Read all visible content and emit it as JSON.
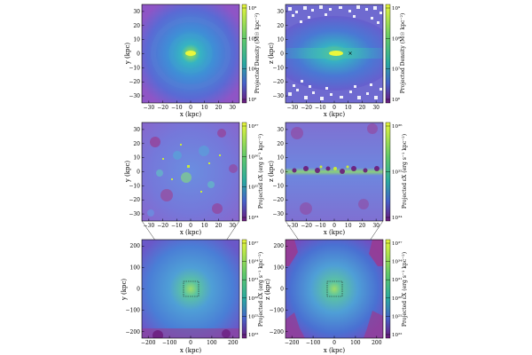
{
  "colors": {
    "dm_core": "#d9f23a",
    "dm_mid": "#3ab0c8",
    "dm_outer": "#5870d6",
    "dm_edge": "#a05cc8",
    "gas_bg": "#7a74da",
    "gas_hot": "#9fd05a",
    "gas_dark": "#9a3a90",
    "bg_outer": "#8a4bbe",
    "halo_mid": "#4f9fd6",
    "halo_core": "#6acb94",
    "cbar_top": "#e6f53a",
    "cbar_mid": "#2aa8a0",
    "cbar_bot": "#6a1a7a"
  },
  "chart_data": [
    {
      "type": "heatmap",
      "panel": "top-left",
      "xlabel": "x (kpc)",
      "ylabel": "y (kpc)",
      "cbar_label": "Projected Density (M☉ kpc⁻²)",
      "xlim": [
        -35,
        35
      ],
      "ylim": [
        -35,
        35
      ],
      "xticks": [
        "−30",
        "−20",
        "−10",
        "0",
        "10",
        "20",
        "30"
      ],
      "yticks": [
        "−30",
        "−20",
        "−10",
        "0",
        "10",
        "20",
        "30"
      ],
      "cbar_ticks": [
        "10⁹",
        "10⁸",
        "10⁷",
        "10⁶"
      ]
    },
    {
      "type": "heatmap",
      "panel": "top-right",
      "xlabel": "x (kpc)",
      "ylabel": "z (kpc)",
      "cbar_label": "Projected Density (M☉ kpc⁻²)",
      "xlim": [
        -35,
        35
      ],
      "ylim": [
        -35,
        35
      ],
      "xticks": [
        "−30",
        "−20",
        "−10",
        "0",
        "10",
        "20",
        "30"
      ],
      "yticks": [
        "−30",
        "−20",
        "−10",
        "0",
        "10",
        "20",
        "30"
      ],
      "cbar_ticks": [
        "10⁹",
        "10⁸",
        "10⁷",
        "10⁶"
      ]
    },
    {
      "type": "heatmap",
      "panel": "middle-left",
      "xlabel": "x (kpc)",
      "ylabel": "y (kpc)",
      "cbar_label": "Projected εX (erg s⁻¹ kpc⁻²)",
      "xlim": [
        -35,
        35
      ],
      "ylim": [
        -35,
        35
      ],
      "xticks": [
        "−30",
        "−20",
        "−10",
        "0",
        "10",
        "20",
        "30"
      ],
      "yticks": [
        "−30",
        "−20",
        "−10",
        "0",
        "10",
        "20",
        "30"
      ],
      "cbar_ticks": [
        "10³⁷",
        "10³⁶",
        "10³⁵",
        "10³⁴"
      ]
    },
    {
      "type": "heatmap",
      "panel": "middle-right",
      "xlabel": "x (kpc)",
      "ylabel": "z (kpc)",
      "cbar_label": "Projected εX (erg s⁻¹ kpc⁻²)",
      "xlim": [
        -35,
        35
      ],
      "ylim": [
        -35,
        35
      ],
      "xticks": [
        "−30",
        "−20",
        "−10",
        "0",
        "10",
        "20",
        "30"
      ],
      "yticks": [
        "−30",
        "−20",
        "−10",
        "0",
        "10",
        "20",
        "30"
      ],
      "cbar_ticks": [
        "10³⁶",
        "10³⁵",
        "10³⁴"
      ]
    },
    {
      "type": "heatmap",
      "panel": "bottom-left",
      "xlabel": "x (kpc)",
      "ylabel": "y (kpc)",
      "cbar_label": "Projected εX (erg s⁻¹ kpc⁻²)",
      "xlim": [
        -230,
        230
      ],
      "ylim": [
        -230,
        230
      ],
      "xticks": [
        "−200",
        "−100",
        "0",
        "100",
        "200"
      ],
      "yticks": [
        "−200",
        "−100",
        "0",
        "100",
        "200"
      ],
      "cbar_ticks": [
        "10³⁷",
        "10³⁴",
        "10³¹",
        "10²⁸",
        "10²⁵",
        "10²²"
      ],
      "zoom_box": [
        -35,
        35
      ]
    },
    {
      "type": "heatmap",
      "panel": "bottom-right",
      "xlabel": "x (kpc)",
      "ylabel": "z (kpc)",
      "cbar_label": "Projected εX (erg s⁻¹ kpc⁻²)",
      "xlim": [
        -230,
        230
      ],
      "ylim": [
        -230,
        230
      ],
      "xticks": [
        "−200",
        "−100",
        "0",
        "100",
        "200"
      ],
      "yticks": [
        "−200",
        "−100",
        "0",
        "100",
        "200"
      ],
      "cbar_ticks": [
        "10³⁷",
        "10³⁴",
        "10³¹",
        "10²⁸",
        "10²⁵",
        "10²²"
      ],
      "zoom_box": [
        -35,
        35
      ]
    }
  ]
}
